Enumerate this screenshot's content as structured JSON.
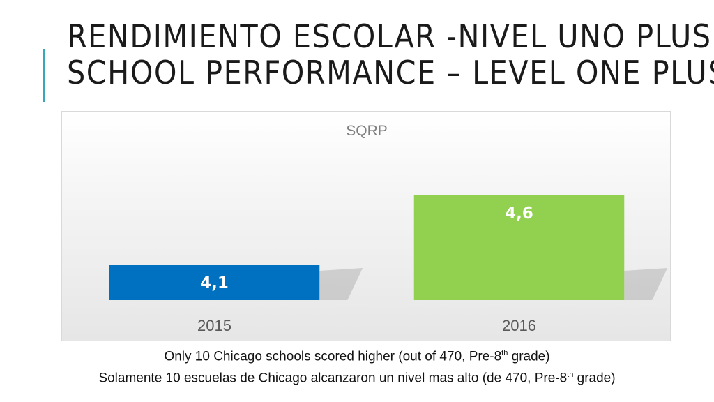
{
  "title": {
    "line1": "RENDIMIENTO ESCOLAR -NIVEL UNO PLUS",
    "line2": "SCHOOL PERFORMANCE – LEVEL ONE PLUS"
  },
  "colors": {
    "accent": "#3aa6b9",
    "bar_2015": "#0070c0",
    "bar_2016": "#92d050"
  },
  "chart_data": {
    "type": "bar",
    "title": "SQRP",
    "categories": [
      "2015",
      "2016"
    ],
    "values": [
      4.1,
      4.6
    ],
    "value_labels": [
      "4,1",
      "4,6"
    ],
    "bar_colors": [
      "#0070c0",
      "#92d050"
    ],
    "ylim": [
      3.85,
      5.0
    ],
    "xlabel": "",
    "ylabel": "",
    "grid": false,
    "legend": "none"
  },
  "captions": {
    "line1_before": "Only 10 Chicago schools scored higher (out of 470, Pre-8",
    "line1_sup": "th",
    "line1_after": " grade)",
    "line2_before": "Solamente 10 escuelas de Chicago alcanzaron un nivel mas alto (de 470, Pre-8",
    "line2_sup": "th",
    "line2_after": " grade)"
  }
}
